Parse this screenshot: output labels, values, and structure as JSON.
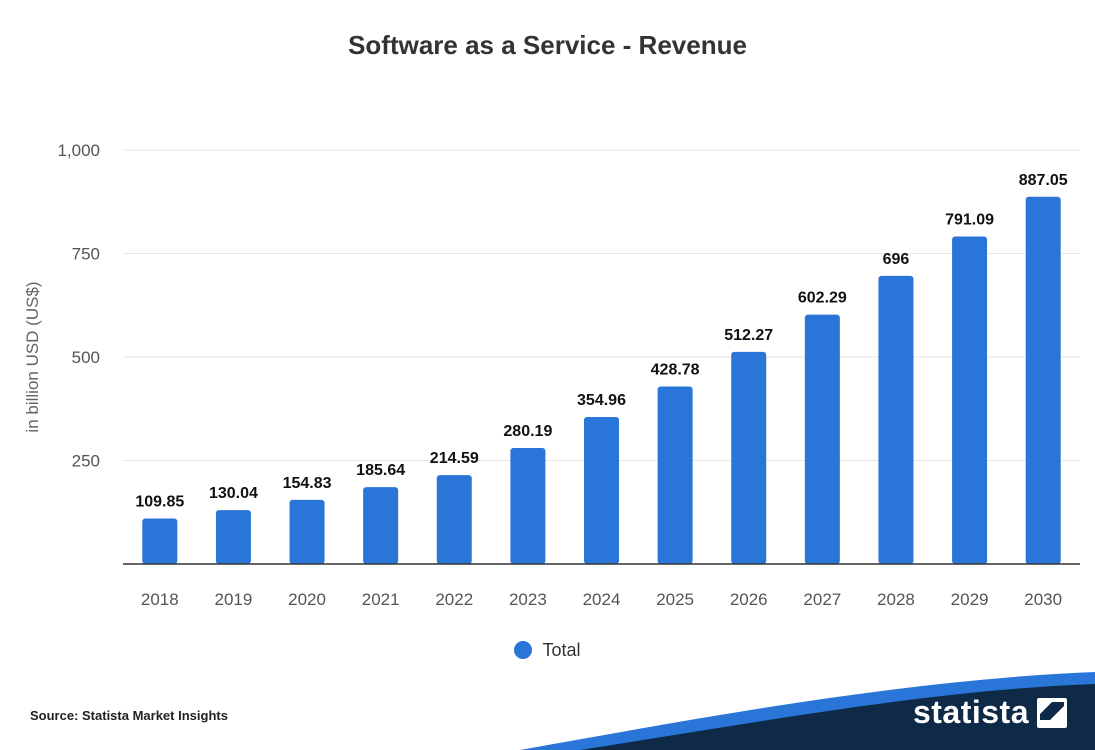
{
  "chart_data": {
    "type": "bar",
    "title": "Software as a Service - Revenue",
    "xlabel": "",
    "ylabel": "in billion USD (US$)",
    "ylim": [
      0,
      1000
    ],
    "yticks": [
      250,
      500,
      750,
      1000
    ],
    "ytick_labels": [
      "250",
      "500",
      "750",
      "1,000"
    ],
    "grid": true,
    "legend_position": "bottom-center",
    "categories": [
      "2018",
      "2019",
      "2020",
      "2021",
      "2022",
      "2023",
      "2024",
      "2025",
      "2026",
      "2027",
      "2028",
      "2029",
      "2030"
    ],
    "series": [
      {
        "name": "Total",
        "values": [
          109.85,
          130.04,
          154.83,
          185.64,
          214.59,
          280.19,
          354.96,
          428.78,
          512.27,
          602.29,
          696,
          791.09,
          887.05
        ],
        "labels": [
          "109.85",
          "130.04",
          "154.83",
          "185.64",
          "214.59",
          "280.19",
          "354.96",
          "428.78",
          "512.27",
          "602.29",
          "696",
          "791.09",
          "887.05"
        ]
      }
    ]
  },
  "colors": {
    "bar": "#2a75d8",
    "grid": "#e6e6e6",
    "axis": "#333333",
    "footer": "#0f2a46"
  },
  "footer": {
    "source": "Source: Statista Market Insights",
    "brand": "statista"
  }
}
